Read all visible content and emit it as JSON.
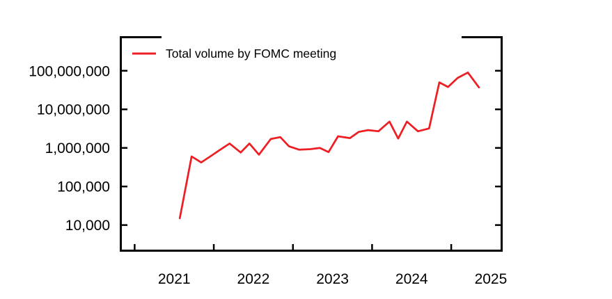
{
  "chart_data": {
    "type": "line",
    "title": "",
    "legend": {
      "label": "Total volume by FOMC meeting",
      "position": "top-left-inside"
    },
    "x_axis": {
      "label": "",
      "tick_labels": [
        "2021",
        "2022",
        "2023",
        "2024",
        "2025"
      ],
      "tick_values": [
        2021,
        2022,
        2023,
        2024,
        2025
      ],
      "tick_label_position": "centered-mid-year",
      "range": [
        2020.825,
        2025.637
      ]
    },
    "y_axis": {
      "label": "",
      "scale": "log10",
      "tick_labels": [
        "100,000,000",
        "10,000,000",
        "1,000,000",
        "100,000",
        "10,000"
      ],
      "tick_values": [
        100000000,
        10000000,
        1000000,
        100000,
        10000
      ],
      "range_log10": [
        3.336,
        8.897
      ]
    },
    "grid": false,
    "frame_style": "box-with-partial-top-border-and-inward-ticks",
    "series": [
      {
        "name": "Total volume by FOMC meeting",
        "color": "#ed1f24",
        "points": [
          {
            "meeting": "Jul 2021",
            "x": 2021.57,
            "volume": 15000
          },
          {
            "meeting": "Sep 2021",
            "x": 2021.72,
            "volume": 600000
          },
          {
            "meeting": "Nov 2021",
            "x": 2021.84,
            "volume": 420000
          },
          {
            "meeting": "Dec 2021",
            "x": 2021.95,
            "volume": 590000
          },
          {
            "meeting": "Jan 2022",
            "x": 2022.07,
            "volume": 870000
          },
          {
            "meeting": "Mar 2022",
            "x": 2022.2,
            "volume": 1300000
          },
          {
            "meeting": "May 2022",
            "x": 2022.34,
            "volume": 760000
          },
          {
            "meeting": "Jun 2022",
            "x": 2022.45,
            "volume": 1300000
          },
          {
            "meeting": "Jul 2022",
            "x": 2022.57,
            "volume": 670000
          },
          {
            "meeting": "Sep 2022",
            "x": 2022.72,
            "volume": 1700000
          },
          {
            "meeting": "Nov 2022",
            "x": 2022.84,
            "volume": 1900000
          },
          {
            "meeting": "Dec 2022",
            "x": 2022.95,
            "volume": 1100000
          },
          {
            "meeting": "Feb 2023",
            "x": 2023.08,
            "volume": 900000
          },
          {
            "meeting": "Mar 2023",
            "x": 2023.22,
            "volume": 930000
          },
          {
            "meeting": "May 2023",
            "x": 2023.34,
            "volume": 1000000
          },
          {
            "meeting": "Jun 2023",
            "x": 2023.45,
            "volume": 780000
          },
          {
            "meeting": "Jul 2023",
            "x": 2023.57,
            "volume": 2000000
          },
          {
            "meeting": "Sep 2023",
            "x": 2023.72,
            "volume": 1800000
          },
          {
            "meeting": "Nov 2023",
            "x": 2023.83,
            "volume": 2600000
          },
          {
            "meeting": "Dec 2023",
            "x": 2023.95,
            "volume": 2900000
          },
          {
            "meeting": "Jan 2024",
            "x": 2024.08,
            "volume": 2700000
          },
          {
            "meeting": "Mar 2024",
            "x": 2024.22,
            "volume": 4800000
          },
          {
            "meeting": "May 2024",
            "x": 2024.33,
            "volume": 1750000
          },
          {
            "meeting": "Jun 2024",
            "x": 2024.44,
            "volume": 4800000
          },
          {
            "meeting": "Jul 2024",
            "x": 2024.58,
            "volume": 2700000
          },
          {
            "meeting": "Sep 2024",
            "x": 2024.72,
            "volume": 3200000
          },
          {
            "meeting": "Nov 2024",
            "x": 2024.85,
            "volume": 50000000
          },
          {
            "meeting": "Dec 2024",
            "x": 2024.96,
            "volume": 38000000
          },
          {
            "meeting": "Jan 2025",
            "x": 2025.08,
            "volume": 65000000
          },
          {
            "meeting": "Mar 2025",
            "x": 2025.21,
            "volume": 90000000
          },
          {
            "meeting": "May 2025",
            "x": 2025.35,
            "volume": 37000000
          }
        ]
      }
    ]
  },
  "colors": {
    "background": "#ffffff",
    "axis": "#000000",
    "text": "#000000",
    "series_red": "#ed1f24"
  }
}
